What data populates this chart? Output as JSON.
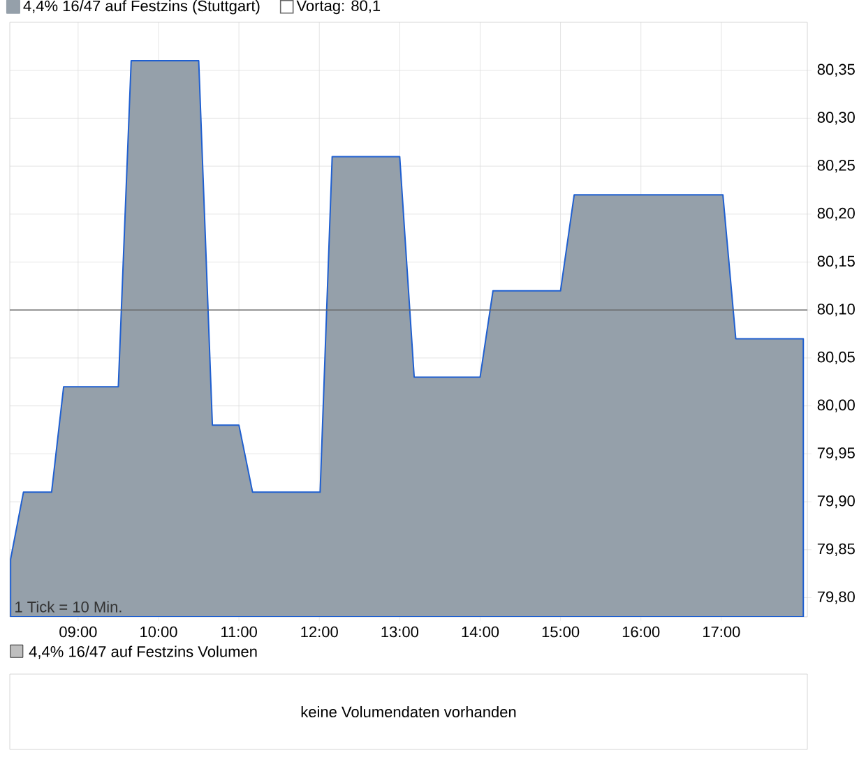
{
  "chart_data": [
    {
      "type": "area",
      "x": [
        8.16,
        8.32,
        8.67,
        8.82,
        9.5,
        9.66,
        10.5,
        10.67,
        11.0,
        11.17,
        12.01,
        12.16,
        13.0,
        13.18,
        14.0,
        14.16,
        15.0,
        15.17,
        17.02,
        17.18,
        18.02
      ],
      "series": [
        {
          "name": "4,4% 16/47 auf Festzins (Stuttgart)",
          "color": "#95a0aa",
          "values": [
            79.84,
            79.91,
            79.91,
            80.02,
            80.02,
            80.36,
            80.36,
            79.98,
            79.98,
            79.91,
            79.91,
            80.26,
            80.26,
            80.03,
            80.03,
            80.12,
            80.12,
            80.22,
            80.22,
            80.07,
            80.07
          ]
        }
      ],
      "xlim": [
        8.15,
        18.07
      ],
      "ylim": [
        79.78,
        80.4
      ],
      "xticks": [
        {
          "value": 9,
          "label": "09:00"
        },
        {
          "value": 10,
          "label": "10:00"
        },
        {
          "value": 11,
          "label": "11:00"
        },
        {
          "value": 12,
          "label": "12:00"
        },
        {
          "value": 13,
          "label": "13:00"
        },
        {
          "value": 14,
          "label": "14:00"
        },
        {
          "value": 15,
          "label": "15:00"
        },
        {
          "value": 16,
          "label": "16:00"
        },
        {
          "value": 17,
          "label": "17:00"
        }
      ],
      "yticks": [
        {
          "value": 79.8,
          "label": "79,80"
        },
        {
          "value": 79.85,
          "label": "79,85"
        },
        {
          "value": 79.9,
          "label": "79,90"
        },
        {
          "value": 79.95,
          "label": "79,95"
        },
        {
          "value": 80.0,
          "label": "80,00"
        },
        {
          "value": 80.05,
          "label": "80,05"
        },
        {
          "value": 80.1,
          "label": "80,10"
        },
        {
          "value": 80.15,
          "label": "80,15"
        },
        {
          "value": 80.2,
          "label": "80,20"
        },
        {
          "value": 80.25,
          "label": "80,25"
        },
        {
          "value": 80.3,
          "label": "80,30"
        },
        {
          "value": 80.35,
          "label": "80,35"
        }
      ],
      "ref_lines": [
        {
          "axis": "y",
          "value": 80.1,
          "label": "Vortag: 80,1",
          "color": "#666666"
        }
      ],
      "grid": true,
      "legend": "top left",
      "annotations": [
        "1 Tick = 10 Min."
      ]
    },
    {
      "type": "other",
      "title": "4,4% 16/47 auf Festzins Volumen",
      "annotations": [
        "keine Volumendaten vorhanden"
      ]
    }
  ]
}
